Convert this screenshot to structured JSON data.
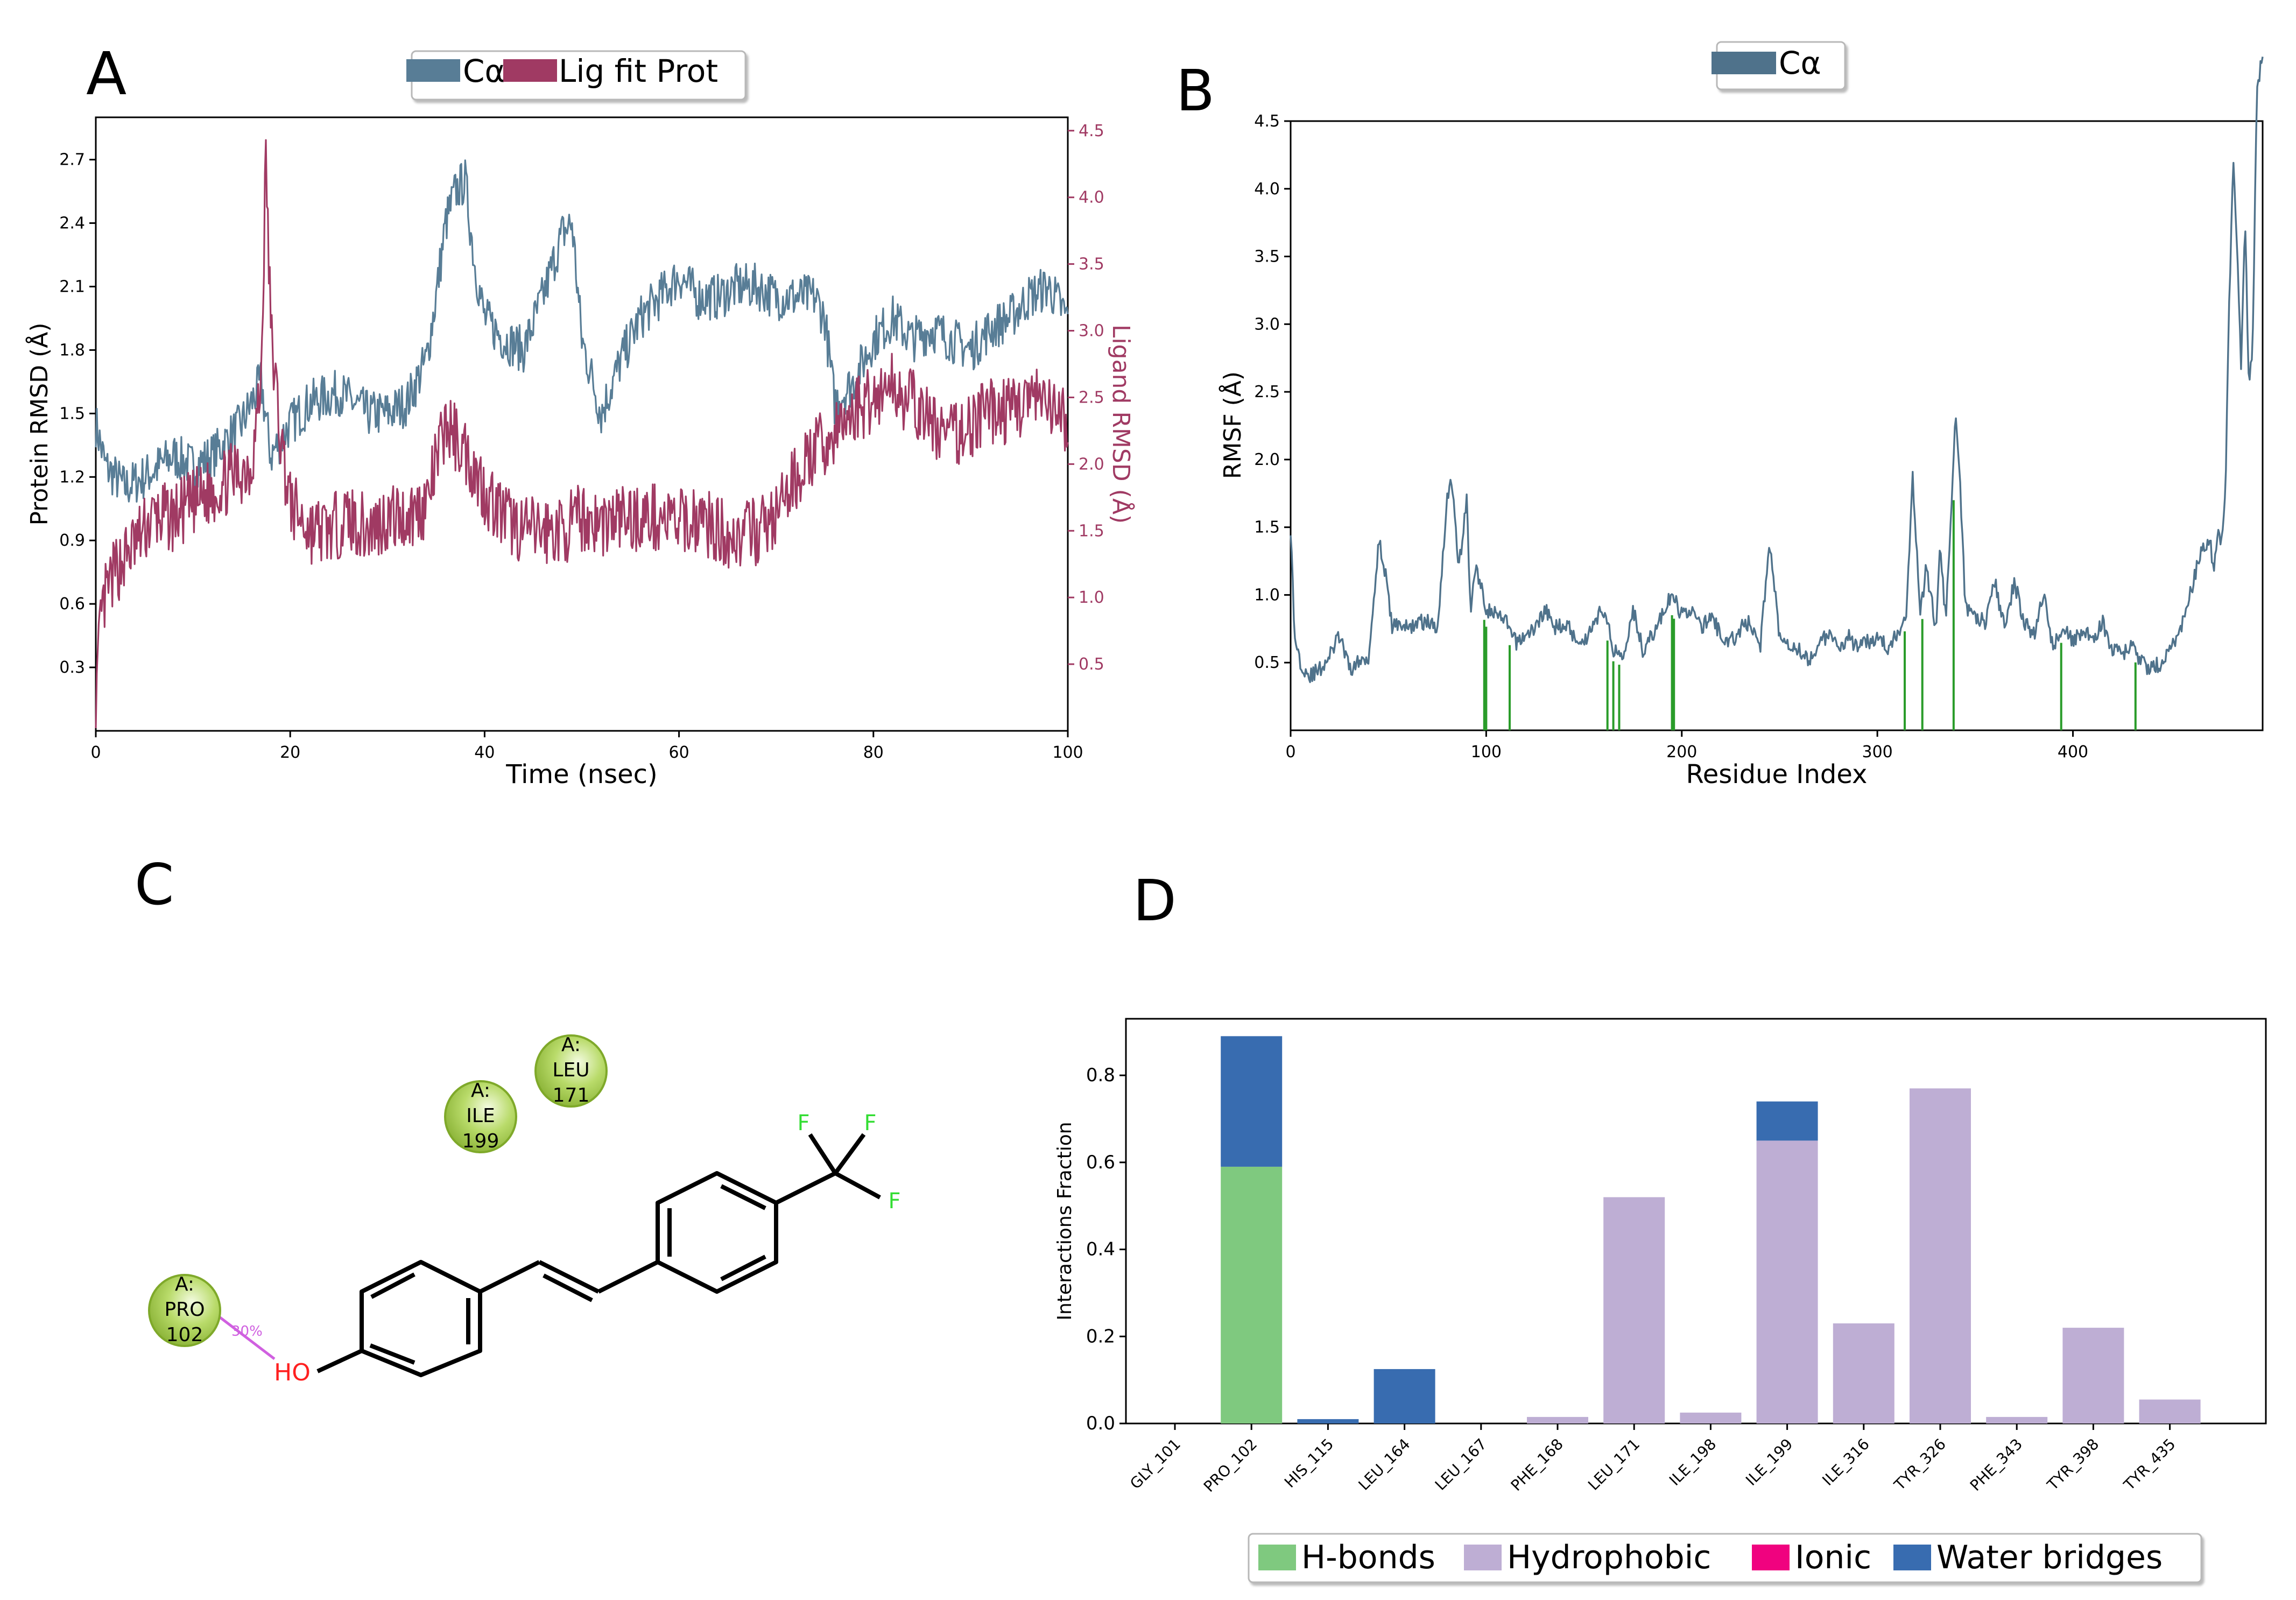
{
  "panels": {
    "A": {
      "letter": "A",
      "legend": [
        "Cα",
        "Lig fit Prot"
      ],
      "xlabel": "Time (nsec)",
      "ylabel_left": "Protein RMSD (Å)",
      "ylabel_right": "Ligand RMSD (Å)"
    },
    "B": {
      "letter": "B",
      "legend": [
        "Cα"
      ],
      "xlabel": "Residue Index",
      "ylabel": "RMSF (Å)"
    },
    "C": {
      "letter": "C",
      "residues": [
        {
          "chain": "A:",
          "name": "ILE",
          "num": "199"
        },
        {
          "chain": "A:",
          "name": "LEU",
          "num": "171"
        },
        {
          "chain": "A:",
          "name": "PRO",
          "num": "102"
        }
      ],
      "hbond_pct": "30%",
      "atoms": {
        "hydroxyl": "HO",
        "fluorine": "F"
      }
    },
    "D": {
      "letter": "D",
      "ylabel": "Interactions Fraction",
      "legend": [
        "H-bonds",
        "Hydrophobic",
        "Ionic",
        "Water bridges"
      ]
    }
  },
  "colors": {
    "calpha": "#587d96",
    "ligand": "#a03a63",
    "rmsf": "#4f728b",
    "contact": "#2a9c2a",
    "hbond": "#7fc97f",
    "hydrophobic": "#beaed4",
    "ionic": "#f0027f",
    "water": "#386cb0",
    "residue_green": "#9bc53d",
    "hydroxyl": "#ff2020",
    "fluorine": "#33dd33",
    "hbond_line": "#d060e0"
  },
  "chart_data": [
    {
      "panel": "A",
      "type": "line",
      "x_range": [
        0,
        100
      ],
      "x_ticks": [
        "0",
        "20",
        "40",
        "60",
        "80",
        "100"
      ],
      "y_left_ticks": [
        "0.3",
        "0.6",
        "0.9",
        "1.2",
        "1.5",
        "1.8",
        "2.1",
        "2.4",
        "2.7"
      ],
      "y_right_ticks": [
        "0.5",
        "1.0",
        "1.5",
        "2.0",
        "2.5",
        "3.0",
        "3.5",
        "4.0",
        "4.5"
      ],
      "ylim_left": [
        0,
        2.9
      ],
      "ylim_right": [
        0,
        4.6
      ],
      "series": [
        {
          "name": "Cα",
          "axis": "left",
          "x": [
            0,
            1,
            2,
            3,
            5,
            8,
            10,
            12,
            15,
            17,
            18,
            20,
            22,
            25,
            28,
            30,
            32,
            34,
            35,
            36,
            37,
            38,
            39,
            40,
            42,
            44,
            46,
            48,
            49,
            50,
            52,
            54,
            56,
            58,
            60,
            62,
            64,
            66,
            68,
            70,
            72,
            74,
            75,
            76,
            78,
            80,
            82,
            84,
            86,
            88,
            90,
            92,
            94,
            96,
            98,
            100
          ],
          "y": [
            1.45,
            1.25,
            1.2,
            1.15,
            1.2,
            1.3,
            1.25,
            1.3,
            1.45,
            1.65,
            1.3,
            1.45,
            1.55,
            1.6,
            1.5,
            1.5,
            1.55,
            1.75,
            2.05,
            2.4,
            2.55,
            2.6,
            2.2,
            1.95,
            1.85,
            1.8,
            2.05,
            2.35,
            2.4,
            1.85,
            1.5,
            1.75,
            1.95,
            2.05,
            2.15,
            2.05,
            2.05,
            2.1,
            2.1,
            2.05,
            2.05,
            2.05,
            1.95,
            1.55,
            1.65,
            1.85,
            1.95,
            1.85,
            1.9,
            1.85,
            1.8,
            1.9,
            1.95,
            2.05,
            2.1,
            1.95
          ]
        },
        {
          "name": "Lig fit Prot",
          "axis": "right",
          "x": [
            0,
            0.5,
            1,
            2,
            4,
            6,
            8,
            10,
            12,
            14,
            16,
            17,
            17.5,
            18,
            19,
            20,
            22,
            24,
            26,
            28,
            30,
            32,
            34,
            36,
            38,
            40,
            42,
            44,
            46,
            48,
            50,
            52,
            54,
            56,
            58,
            60,
            62,
            64,
            66,
            68,
            70,
            72,
            74,
            76,
            78,
            80,
            82,
            84,
            86,
            88,
            90,
            92,
            94,
            96,
            98,
            100
          ],
          "y": [
            0.2,
            0.8,
            1.0,
            1.2,
            1.4,
            1.6,
            1.6,
            1.7,
            1.8,
            1.9,
            2.0,
            2.6,
            4.3,
            3.0,
            2.2,
            1.7,
            1.5,
            1.5,
            1.6,
            1.5,
            1.6,
            1.6,
            1.7,
            2.3,
            2.1,
            1.8,
            1.6,
            1.5,
            1.5,
            1.5,
            1.6,
            1.55,
            1.6,
            1.6,
            1.6,
            1.55,
            1.6,
            1.5,
            1.45,
            1.5,
            1.6,
            1.9,
            2.1,
            2.2,
            2.4,
            2.5,
            2.6,
            2.45,
            2.3,
            2.2,
            2.3,
            2.4,
            2.4,
            2.5,
            2.4,
            2.3
          ]
        }
      ]
    },
    {
      "panel": "B",
      "type": "line",
      "x_range": [
        0,
        497
      ],
      "x_ticks": [
        "0",
        "100",
        "200",
        "300",
        "400"
      ],
      "y_ticks": [
        "0.5",
        "1.0",
        "1.5",
        "2.0",
        "2.5",
        "3.0",
        "3.5",
        "4.0",
        "4.5"
      ],
      "ylim": [
        0,
        4.5
      ],
      "series": [
        {
          "name": "Cα",
          "x": [
            0,
            2,
            5,
            10,
            15,
            20,
            25,
            30,
            35,
            40,
            45,
            48,
            52,
            55,
            60,
            65,
            70,
            75,
            80,
            82,
            86,
            90,
            92,
            95,
            100,
            105,
            110,
            115,
            120,
            125,
            130,
            135,
            140,
            145,
            150,
            155,
            160,
            165,
            170,
            175,
            180,
            185,
            190,
            195,
            200,
            205,
            210,
            215,
            220,
            225,
            230,
            235,
            240,
            245,
            250,
            255,
            260,
            265,
            270,
            275,
            280,
            285,
            290,
            295,
            300,
            305,
            310,
            315,
            318,
            322,
            325,
            330,
            332,
            335,
            340,
            342,
            345,
            350,
            355,
            360,
            365,
            370,
            375,
            380,
            385,
            390,
            395,
            400,
            405,
            410,
            415,
            420,
            425,
            430,
            435,
            440,
            445,
            450,
            455,
            460,
            465,
            470,
            472,
            474,
            476,
            478,
            480,
            482,
            484,
            486,
            488,
            490,
            492,
            494,
            497
          ],
          "y": [
            1.5,
            0.7,
            0.5,
            0.4,
            0.45,
            0.55,
            0.7,
            0.45,
            0.5,
            0.55,
            1.4,
            1.2,
            0.75,
            0.8,
            0.75,
            0.8,
            0.8,
            0.75,
            1.7,
            1.9,
            1.2,
            1.7,
            0.9,
            1.2,
            0.9,
            0.85,
            0.8,
            0.65,
            0.7,
            0.75,
            0.9,
            0.75,
            0.8,
            0.7,
            0.65,
            0.8,
            0.9,
            0.6,
            0.55,
            0.9,
            0.6,
            0.7,
            0.85,
            1.0,
            0.85,
            0.9,
            0.75,
            0.85,
            0.7,
            0.65,
            0.75,
            0.8,
            0.6,
            1.4,
            0.7,
            0.65,
            0.6,
            0.5,
            0.65,
            0.7,
            0.6,
            0.7,
            0.6,
            0.65,
            0.7,
            0.6,
            0.7,
            0.9,
            1.9,
            0.85,
            1.2,
            0.75,
            1.4,
            0.8,
            2.3,
            1.9,
            0.9,
            0.85,
            0.8,
            1.1,
            0.75,
            1.1,
            0.8,
            0.7,
            1.0,
            0.6,
            0.8,
            0.65,
            0.75,
            0.65,
            0.8,
            0.6,
            0.55,
            0.65,
            0.5,
            0.45,
            0.5,
            0.6,
            0.75,
            1.0,
            1.3,
            1.4,
            1.2,
            1.5,
            1.4,
            1.8,
            3.2,
            4.2,
            3.5,
            2.7,
            3.8,
            2.5,
            2.9,
            4.7,
            5.0
          ]
        }
      ],
      "contact_residues": [
        99,
        100,
        112,
        162,
        165,
        168,
        195,
        196,
        314,
        323,
        339,
        394,
        432
      ]
    },
    {
      "panel": "D",
      "type": "bar",
      "stacked": true,
      "ylim": [
        0,
        0.93
      ],
      "y_ticks": [
        "0.0",
        "0.2",
        "0.4",
        "0.6",
        "0.8"
      ],
      "categories": [
        "GLY_101",
        "PRO_102",
        "HIS_115",
        "LEU_164",
        "LEU_167",
        "PHE_168",
        "LEU_171",
        "ILE_198",
        "ILE_199",
        "ILE_316",
        "TYR_326",
        "PHE_343",
        "TYR_398",
        "TYR_435"
      ],
      "series": [
        {
          "name": "H-bonds",
          "values": [
            0,
            0.59,
            0,
            0,
            0,
            0,
            0,
            0,
            0,
            0,
            0,
            0,
            0,
            0
          ]
        },
        {
          "name": "Hydrophobic",
          "values": [
            0,
            0,
            0,
            0,
            0,
            0.015,
            0.52,
            0.025,
            0.65,
            0.23,
            0.77,
            0.015,
            0.22,
            0.055
          ]
        },
        {
          "name": "Ionic",
          "values": [
            0,
            0,
            0,
            0,
            0,
            0,
            0,
            0,
            0,
            0,
            0,
            0,
            0,
            0
          ]
        },
        {
          "name": "Water bridges",
          "values": [
            0,
            0.3,
            0.01,
            0.125,
            0,
            0,
            0,
            0,
            0.09,
            0,
            0,
            0,
            0,
            0
          ]
        }
      ]
    }
  ]
}
